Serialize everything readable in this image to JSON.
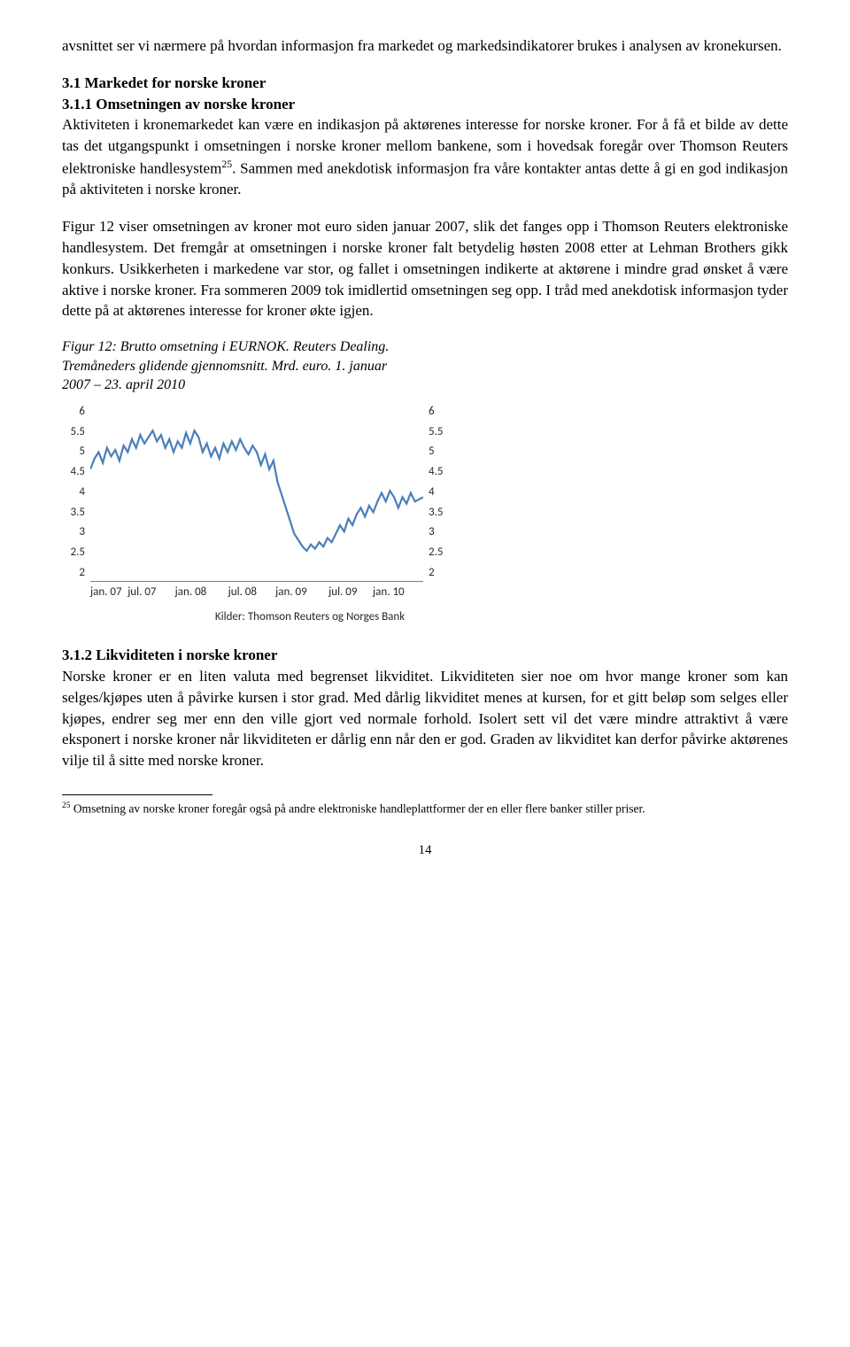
{
  "para1": "avsnittet ser vi nærmere på hvordan informasjon fra markedet og markedsindikatorer brukes i analysen av kronekursen.",
  "sec31_head": "3.1 Markedet for norske kroner",
  "sec311_head": "3.1.1 Omsetningen av norske kroner",
  "para2a": "Aktiviteten i kronemarkedet kan være en indikasjon på aktørenes interesse for norske kroner. For å få et bilde av dette tas det utgangspunkt i omsetningen i norske kroner mellom bankene, som i hovedsak foregår over Thomson Reuters elektroniske handlesystem",
  "fn25_num": "25",
  "para2b": ". Sammen med anekdotisk informasjon fra våre kontakter antas dette å gi en god indikasjon på aktiviteten i norske kroner.",
  "para3": "Figur 12 viser omsetningen av kroner mot euro siden januar 2007, slik det fanges opp i Thomson Reuters elektroniske handlesystem. Det fremgår at omsetningen i norske kroner falt betydelig høsten 2008 etter at Lehman Brothers gikk konkurs. Usikkerheten i markedene var stor, og fallet i omsetningen indikerte at aktørene i mindre grad ønsket å være aktive i norske kroner. Fra sommeren 2009 tok imidlertid omsetningen seg opp. I tråd med anekdotisk informasjon tyder dette på at aktørenes interesse for kroner økte igjen.",
  "figcap_l1": "Figur 12: Brutto omsetning i EURNOK. Reuters Dealing.",
  "figcap_l2": "Tremåneders glidende gjennomsnitt. Mrd. euro. 1. januar",
  "figcap_l3": "2007 – 23. april 2010",
  "chart": {
    "y_ticks": [
      "6",
      "5.5",
      "5",
      "4.5",
      "4",
      "3.5",
      "3",
      "2.5",
      "2"
    ],
    "x_ticks": [
      "jan. 07",
      "jul. 07",
      "jan. 08",
      "jul. 08",
      "jan. 09",
      "jul. 09",
      "jan. 10"
    ],
    "line_color": "#4a7ebb",
    "axis_text_color": "#262626",
    "ylim": [
      2,
      6
    ],
    "xlim": [
      0,
      40
    ],
    "series": [
      [
        0,
        4.6
      ],
      [
        0.5,
        4.85
      ],
      [
        1,
        5.0
      ],
      [
        1.5,
        4.75
      ],
      [
        2,
        5.1
      ],
      [
        2.5,
        4.9
      ],
      [
        3,
        5.05
      ],
      [
        3.5,
        4.8
      ],
      [
        4,
        5.15
      ],
      [
        4.5,
        5.0
      ],
      [
        5,
        5.3
      ],
      [
        5.5,
        5.1
      ],
      [
        6,
        5.4
      ],
      [
        6.5,
        5.2
      ],
      [
        7,
        5.35
      ],
      [
        7.5,
        5.5
      ],
      [
        8,
        5.25
      ],
      [
        8.5,
        5.4
      ],
      [
        9,
        5.1
      ],
      [
        9.5,
        5.3
      ],
      [
        10,
        5.0
      ],
      [
        10.5,
        5.25
      ],
      [
        11,
        5.1
      ],
      [
        11.5,
        5.45
      ],
      [
        12,
        5.2
      ],
      [
        12.5,
        5.5
      ],
      [
        13,
        5.35
      ],
      [
        13.5,
        5.0
      ],
      [
        14,
        5.2
      ],
      [
        14.5,
        4.9
      ],
      [
        15,
        5.1
      ],
      [
        15.5,
        4.85
      ],
      [
        16,
        5.2
      ],
      [
        16.5,
        5.0
      ],
      [
        17,
        5.25
      ],
      [
        17.5,
        5.05
      ],
      [
        18,
        5.3
      ],
      [
        18.5,
        5.1
      ],
      [
        19,
        4.95
      ],
      [
        19.5,
        5.15
      ],
      [
        20,
        5.0
      ],
      [
        20.5,
        4.7
      ],
      [
        21,
        4.95
      ],
      [
        21.5,
        4.6
      ],
      [
        22,
        4.8
      ],
      [
        22.5,
        4.3
      ],
      [
        23,
        4.0
      ],
      [
        23.5,
        3.7
      ],
      [
        24,
        3.4
      ],
      [
        24.5,
        3.1
      ],
      [
        25,
        2.95
      ],
      [
        25.5,
        2.8
      ],
      [
        26,
        2.7
      ],
      [
        26.5,
        2.85
      ],
      [
        27,
        2.75
      ],
      [
        27.5,
        2.9
      ],
      [
        28,
        2.8
      ],
      [
        28.5,
        3.0
      ],
      [
        29,
        2.9
      ],
      [
        29.5,
        3.1
      ],
      [
        30,
        3.3
      ],
      [
        30.5,
        3.15
      ],
      [
        31,
        3.45
      ],
      [
        31.5,
        3.3
      ],
      [
        32,
        3.55
      ],
      [
        32.5,
        3.7
      ],
      [
        33,
        3.5
      ],
      [
        33.5,
        3.75
      ],
      [
        34,
        3.6
      ],
      [
        34.5,
        3.85
      ],
      [
        35,
        4.05
      ],
      [
        35.5,
        3.85
      ],
      [
        36,
        4.1
      ],
      [
        36.5,
        3.95
      ],
      [
        37,
        3.7
      ],
      [
        37.5,
        3.95
      ],
      [
        38,
        3.8
      ],
      [
        38.5,
        4.05
      ],
      [
        39,
        3.85
      ],
      [
        40,
        3.95
      ]
    ],
    "source": "Kilder: Thomson Reuters og Norges Bank"
  },
  "sec312_head": "3.1.2 Likviditeten i norske kroner",
  "para4": "Norske kroner er en liten valuta med begrenset likviditet. Likviditeten sier noe om hvor mange kroner som kan selges/kjøpes uten å påvirke kursen i stor grad. Med dårlig likviditet menes at kursen, for et gitt beløp som selges eller kjøpes, endrer seg mer enn den ville gjort ved normale forhold. Isolert sett vil det være mindre attraktivt å være eksponert i norske kroner når likviditeten er dårlig enn når den er god. Graden av likviditet kan derfor påvirke aktørenes vilje til å sitte med norske kroner.",
  "fn25_text": " Omsetning av norske kroner foregår også på andre elektroniske handleplattformer der en eller flere banker stiller priser.",
  "page_num": "14"
}
